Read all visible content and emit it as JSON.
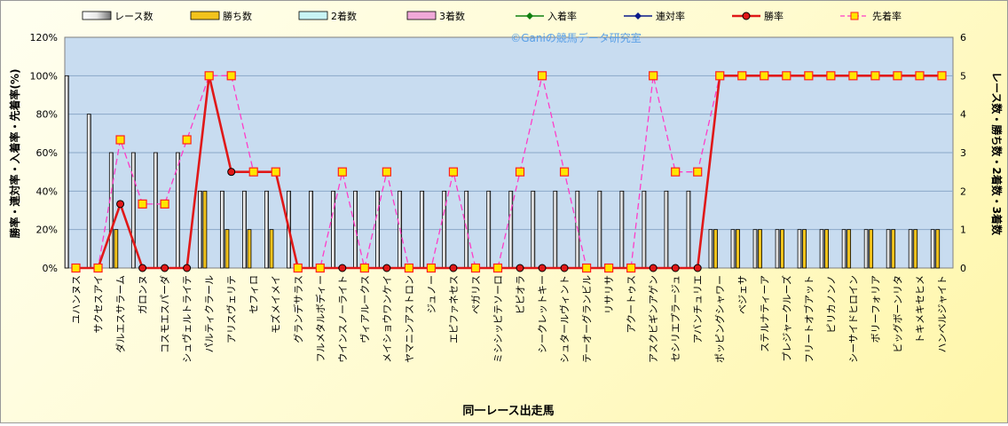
{
  "chart_data": {
    "type": "bar",
    "title": "",
    "xlabel": "同一レース出走馬",
    "ylabel_left": "勝率・連対率・入着率・先着率(%)",
    "ylabel_right": "レース数・勝ち数・2着数・3着数",
    "watermark": "©Ganiの競馬データ研究室",
    "ylim_left": [
      0,
      120
    ],
    "yticks_left": [
      "0%",
      "20%",
      "40%",
      "60%",
      "80%",
      "100%",
      "120%"
    ],
    "ylim_right": [
      0,
      6
    ],
    "yticks_right": [
      "0",
      "1",
      "2",
      "3",
      "4",
      "5",
      "6"
    ],
    "legend_position": "top",
    "categories": [
      "ユハンヌス",
      "サクセスアイ",
      "ダルエスサラーム",
      "ガロンヌ",
      "コスモエスパーダ",
      "シュヴェルトライテ",
      "パルティクラール",
      "アリスヴェリテ",
      "セフィロ",
      "モズメイメイ",
      "グランデサラス",
      "フルメタルボディー",
      "ウインスノーライト",
      "ヴィアルークス",
      "メイショウワンケイ",
      "ヤマニンアストロン",
      "ジュノー",
      "エピファネセス",
      "ペガリス",
      "ミシシッピテソーロ",
      "ピピオラ",
      "シークレットキー",
      "シュタールヴィント",
      "テーオーグランビル",
      "リサリサ",
      "アクートゥス",
      "アスクビギンアゲン",
      "セシリエプラージュ",
      "アバンチュリエ",
      "ポッピングシャワー",
      "ベジェサ",
      "ステルナティーア",
      "プレジャークルーズ",
      "フリートオブアット",
      "ピリカノンノ",
      "シーサイドヒロイン",
      "ボリーフォリア",
      "ビッグボーンリタ",
      "トキメキセヒメ",
      "ハンベルジャイト"
    ],
    "series": [
      {
        "name": "レース数",
        "axis": "right",
        "kind": "bar",
        "color": "#ffffff",
        "values": [
          5,
          4,
          3,
          3,
          3,
          3,
          2,
          2,
          2,
          2,
          2,
          2,
          2,
          2,
          2,
          2,
          2,
          2,
          2,
          2,
          2,
          2,
          2,
          2,
          2,
          2,
          2,
          2,
          2,
          1,
          1,
          1,
          1,
          1,
          1,
          1,
          1,
          1,
          1,
          1
        ]
      },
      {
        "name": "勝ち数",
        "axis": "right",
        "kind": "bar",
        "color": "#f2c31c",
        "values": [
          0,
          0,
          1,
          0,
          0,
          0,
          2,
          1,
          1,
          1,
          0,
          0,
          0,
          0,
          0,
          0,
          0,
          0,
          0,
          0,
          0,
          0,
          0,
          0,
          0,
          0,
          0,
          0,
          0,
          1,
          1,
          1,
          1,
          1,
          1,
          1,
          1,
          1,
          1,
          1
        ]
      },
      {
        "name": "2着数",
        "axis": "right",
        "kind": "bar",
        "color": "#c8f4f4",
        "values": [
          0,
          0,
          0,
          0,
          0,
          0,
          0,
          0,
          0,
          0,
          0,
          0,
          0,
          0,
          0,
          0,
          0,
          0,
          0,
          0,
          0,
          0,
          0,
          0,
          0,
          0,
          0,
          0,
          0,
          0,
          0,
          0,
          0,
          0,
          0,
          0,
          0,
          0,
          0,
          0
        ]
      },
      {
        "name": "3着数",
        "axis": "right",
        "kind": "bar",
        "color": "#f0a8d8",
        "values": [
          0,
          0,
          0,
          0,
          0,
          0,
          0,
          0,
          0,
          0,
          0,
          0,
          0,
          0,
          0,
          0,
          0,
          0,
          0,
          0,
          0,
          0,
          0,
          0,
          0,
          0,
          0,
          0,
          0,
          0,
          0,
          0,
          0,
          0,
          0,
          0,
          0,
          0,
          0,
          0
        ]
      },
      {
        "name": "入着率",
        "axis": "left",
        "kind": "line",
        "color": "#108010",
        "values": null
      },
      {
        "name": "連対率",
        "axis": "left",
        "kind": "line",
        "color": "#0a1a8a",
        "values": null
      },
      {
        "name": "勝率",
        "axis": "left",
        "kind": "line",
        "color": "#e01818",
        "values": [
          0,
          0,
          33.3,
          0,
          0,
          0,
          100,
          50,
          50,
          50,
          0,
          0,
          0,
          0,
          0,
          0,
          0,
          0,
          0,
          0,
          0,
          0,
          0,
          0,
          0,
          0,
          0,
          0,
          0,
          100,
          100,
          100,
          100,
          100,
          100,
          100,
          100,
          100,
          100,
          100
        ]
      },
      {
        "name": "先着率",
        "axis": "left",
        "kind": "dashed",
        "color": "#ff3cc8",
        "values": [
          0,
          0,
          66.7,
          33.3,
          33.3,
          66.7,
          100,
          100,
          50,
          50,
          0,
          0,
          50,
          0,
          50,
          0,
          0,
          50,
          0,
          0,
          50,
          100,
          50,
          0,
          0,
          0,
          100,
          50,
          50,
          100,
          100,
          100,
          100,
          100,
          100,
          100,
          100,
          100,
          100,
          100
        ]
      }
    ]
  }
}
